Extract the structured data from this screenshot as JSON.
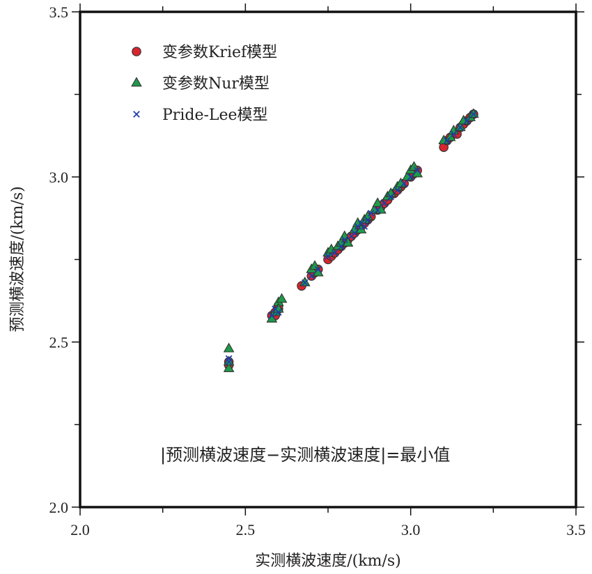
{
  "chart_data": {
    "type": "scatter",
    "title": "",
    "xlabel": "实测横波速度/(km/s)",
    "ylabel": "预测横波速度/(km/s)",
    "xlim": [
      2.0,
      3.5
    ],
    "ylim": [
      2.0,
      3.5
    ],
    "x_ticks": [
      "2.0",
      "2.5",
      "3.0",
      "3.5"
    ],
    "y_ticks": [
      "2.0",
      "2.5",
      "3.0",
      "3.5"
    ],
    "grid": false,
    "legend_position": "top-left",
    "annotation": "|预测横波速度−实测横波速度|=最小值",
    "series": [
      {
        "name": "变参数Krief模型",
        "marker": "circle",
        "color": "#d8262e",
        "points": [
          [
            2.45,
            2.44
          ],
          [
            2.45,
            2.43
          ],
          [
            2.58,
            2.58
          ],
          [
            2.59,
            2.59
          ],
          [
            2.6,
            2.6
          ],
          [
            2.6,
            2.61
          ],
          [
            2.59,
            2.58
          ],
          [
            2.67,
            2.67
          ],
          [
            2.7,
            2.7
          ],
          [
            2.71,
            2.71
          ],
          [
            2.72,
            2.72
          ],
          [
            2.75,
            2.75
          ],
          [
            2.76,
            2.76
          ],
          [
            2.77,
            2.77
          ],
          [
            2.78,
            2.78
          ],
          [
            2.79,
            2.79
          ],
          [
            2.8,
            2.8
          ],
          [
            2.81,
            2.81
          ],
          [
            2.82,
            2.82
          ],
          [
            2.83,
            2.83
          ],
          [
            2.84,
            2.84
          ],
          [
            2.85,
            2.85
          ],
          [
            2.86,
            2.86
          ],
          [
            2.87,
            2.87
          ],
          [
            2.88,
            2.88
          ],
          [
            2.9,
            2.9
          ],
          [
            2.91,
            2.91
          ],
          [
            2.92,
            2.92
          ],
          [
            2.93,
            2.93
          ],
          [
            2.95,
            2.95
          ],
          [
            2.96,
            2.96
          ],
          [
            2.97,
            2.97
          ],
          [
            2.98,
            2.98
          ],
          [
            3.0,
            3.0
          ],
          [
            3.01,
            3.01
          ],
          [
            3.02,
            3.02
          ],
          [
            3.1,
            3.09
          ],
          [
            3.11,
            3.11
          ],
          [
            3.12,
            3.12
          ],
          [
            3.14,
            3.13
          ],
          [
            3.15,
            3.15
          ],
          [
            3.16,
            3.16
          ],
          [
            3.17,
            3.17
          ],
          [
            3.18,
            3.18
          ],
          [
            3.19,
            3.19
          ]
        ]
      },
      {
        "name": "变参数Nur模型",
        "marker": "triangle",
        "color": "#1e9a49",
        "points": [
          [
            2.45,
            2.48
          ],
          [
            2.45,
            2.42
          ],
          [
            2.45,
            2.44
          ],
          [
            2.58,
            2.57
          ],
          [
            2.59,
            2.59
          ],
          [
            2.6,
            2.62
          ],
          [
            2.61,
            2.63
          ],
          [
            2.6,
            2.6
          ],
          [
            2.68,
            2.68
          ],
          [
            2.7,
            2.72
          ],
          [
            2.71,
            2.73
          ],
          [
            2.72,
            2.71
          ],
          [
            2.75,
            2.77
          ],
          [
            2.76,
            2.78
          ],
          [
            2.78,
            2.79
          ],
          [
            2.79,
            2.8
          ],
          [
            2.8,
            2.82
          ],
          [
            2.81,
            2.8
          ],
          [
            2.83,
            2.84
          ],
          [
            2.84,
            2.86
          ],
          [
            2.85,
            2.84
          ],
          [
            2.86,
            2.87
          ],
          [
            2.87,
            2.88
          ],
          [
            2.89,
            2.9
          ],
          [
            2.9,
            2.92
          ],
          [
            2.91,
            2.9
          ],
          [
            2.93,
            2.94
          ],
          [
            2.94,
            2.95
          ],
          [
            2.96,
            2.97
          ],
          [
            2.97,
            2.98
          ],
          [
            2.99,
            3.0
          ],
          [
            3.0,
            3.02
          ],
          [
            3.01,
            3.03
          ],
          [
            3.02,
            3.01
          ],
          [
            3.1,
            3.11
          ],
          [
            3.12,
            3.12
          ],
          [
            3.13,
            3.14
          ],
          [
            3.15,
            3.15
          ],
          [
            3.16,
            3.17
          ],
          [
            3.18,
            3.18
          ],
          [
            3.19,
            3.19
          ]
        ]
      },
      {
        "name": "Pride-Lee模型",
        "marker": "cross",
        "color": "#1f3fa8",
        "points": [
          [
            2.45,
            2.44
          ],
          [
            2.45,
            2.45
          ],
          [
            2.58,
            2.58
          ],
          [
            2.59,
            2.6
          ],
          [
            2.6,
            2.59
          ],
          [
            2.68,
            2.68
          ],
          [
            2.7,
            2.7
          ],
          [
            2.72,
            2.72
          ],
          [
            2.75,
            2.76
          ],
          [
            2.77,
            2.77
          ],
          [
            2.79,
            2.79
          ],
          [
            2.8,
            2.81
          ],
          [
            2.82,
            2.82
          ],
          [
            2.83,
            2.83
          ],
          [
            2.84,
            2.85
          ],
          [
            2.85,
            2.86
          ],
          [
            2.86,
            2.85
          ],
          [
            2.87,
            2.87
          ],
          [
            2.88,
            2.89
          ],
          [
            2.9,
            2.9
          ],
          [
            2.92,
            2.92
          ],
          [
            2.94,
            2.94
          ],
          [
            2.96,
            2.96
          ],
          [
            2.98,
            2.98
          ],
          [
            3.0,
            3.0
          ],
          [
            3.02,
            3.02
          ],
          [
            3.11,
            3.11
          ],
          [
            3.13,
            3.13
          ],
          [
            3.15,
            3.15
          ],
          [
            3.17,
            3.17
          ],
          [
            3.19,
            3.19
          ]
        ]
      }
    ]
  }
}
